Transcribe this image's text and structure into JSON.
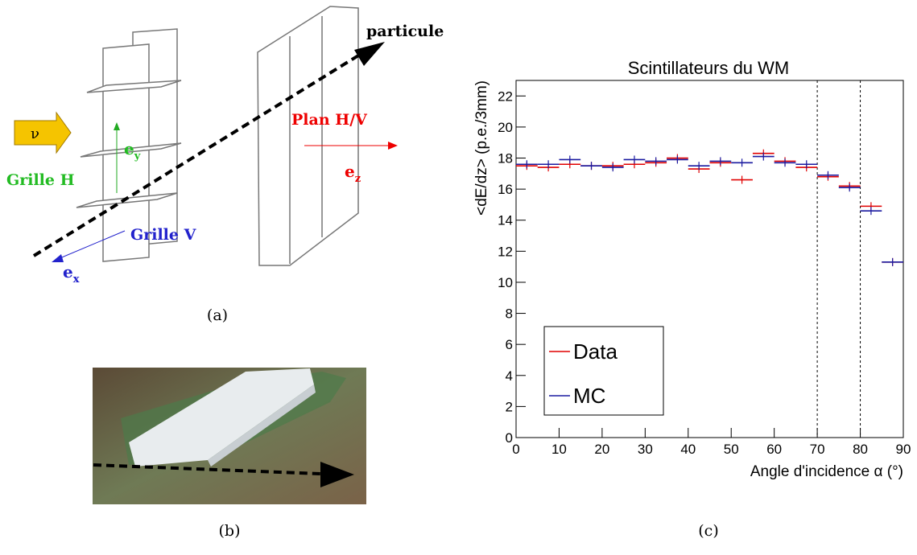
{
  "figure_a": {
    "particle": "particule",
    "neutrino": "ν",
    "plane": "Plan H/V",
    "grid_h": "Grille H",
    "grid_v": "Grille V",
    "ey": {
      "base": "e",
      "sub": "y"
    },
    "ez": {
      "base": "e",
      "sub": "z"
    },
    "ex": {
      "base": "e",
      "sub": "x"
    },
    "caption": "(a)"
  },
  "figure_b": {
    "caption": "(b)"
  },
  "chart_data": {
    "type": "histogram",
    "title": "Scintillateurs du WM",
    "xlabel": "Angle d'incidence α (°)",
    "ylabel": "<dE/dz> (p.e./3mm)",
    "bins": [
      0,
      5,
      10,
      15,
      20,
      25,
      30,
      35,
      40,
      45,
      50,
      55,
      60,
      65,
      70,
      75,
      80,
      85,
      90
    ],
    "series": [
      {
        "name": "Data",
        "color": "#e00000",
        "values": [
          17.5,
          17.4,
          17.6,
          17.5,
          17.5,
          17.6,
          17.7,
          18.0,
          17.3,
          17.7,
          16.6,
          18.3,
          17.8,
          17.4,
          16.8,
          16.2,
          14.9,
          11.3
        ]
      },
      {
        "name": "MC",
        "color": "#1a1aa0",
        "values": [
          17.6,
          17.6,
          17.9,
          17.5,
          17.4,
          17.9,
          17.8,
          17.9,
          17.5,
          17.8,
          17.7,
          18.1,
          17.7,
          17.6,
          16.9,
          16.1,
          14.6,
          11.3
        ]
      }
    ],
    "xlim": [
      0,
      90
    ],
    "ylim": [
      0,
      23
    ],
    "xticks": [
      0,
      10,
      20,
      30,
      40,
      50,
      60,
      70,
      80,
      90
    ],
    "yticks": [
      0,
      2,
      4,
      6,
      8,
      10,
      12,
      14,
      16,
      18,
      20,
      22
    ],
    "vlines": [
      70,
      80
    ],
    "caption": "(c)"
  }
}
